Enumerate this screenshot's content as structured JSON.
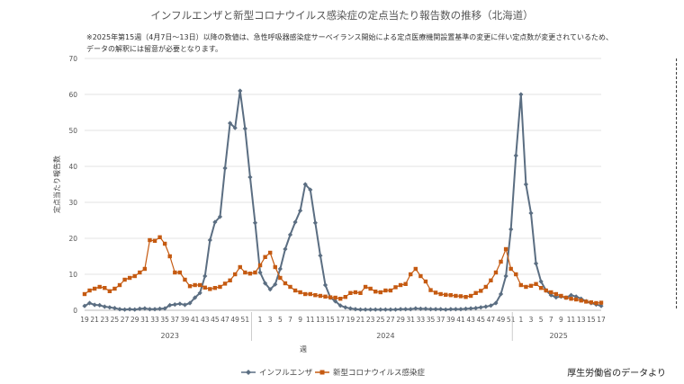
{
  "header": {
    "title": "インフルエンザと新型コロナウイルス感染症の定点当たり報告数の推移（北海道）",
    "note_line1": "※2025年第15週（4月7日〜13日）以降の数値は、急性呼吸器感染症サーベイランス開始による定点医療機関設置基準の変更に伴い定点数が変更されているため、",
    "note_line2": "データの解釈には留意が必要となります。"
  },
  "credit": "厚生労働省のデータより",
  "chart_data": {
    "type": "line",
    "ylabel": "定点当たり報告数",
    "xlabel": "週",
    "ylim": [
      0,
      70
    ],
    "yticks": [
      0,
      10,
      20,
      30,
      40,
      50,
      60,
      70
    ],
    "grid": true,
    "legend_position": "bottom",
    "reference_line": {
      "at_week_index": 118,
      "style": "dashed"
    },
    "x_tick_labels": [
      "19",
      "21",
      "23",
      "25",
      "27",
      "29",
      "31",
      "33",
      "35",
      "37",
      "39",
      "41",
      "43",
      "45",
      "47",
      "49",
      "51",
      "1",
      "3",
      "5",
      "7",
      "9",
      "11",
      "13",
      "15",
      "17",
      "19",
      "21",
      "23",
      "25",
      "27",
      "29",
      "31",
      "33",
      "35",
      "37",
      "39",
      "41",
      "43",
      "45",
      "47",
      "49",
      "51",
      "1",
      "3",
      "5",
      "7",
      "9",
      "11",
      "13",
      "15",
      "17"
    ],
    "x_tick_index": [
      0,
      2,
      4,
      6,
      8,
      10,
      12,
      14,
      16,
      18,
      20,
      22,
      24,
      26,
      28,
      30,
      32,
      35,
      37,
      39,
      41,
      43,
      45,
      47,
      49,
      51,
      53,
      55,
      57,
      59,
      61,
      63,
      65,
      67,
      69,
      71,
      73,
      75,
      77,
      79,
      81,
      83,
      85,
      87,
      89,
      91,
      93,
      95,
      97,
      99,
      101,
      103
    ],
    "year_labels": [
      {
        "label": "2023",
        "start_index": 0,
        "end_index": 34
      },
      {
        "label": "2024",
        "start_index": 34,
        "end_index": 86
      },
      {
        "label": "2025",
        "start_index": 86,
        "end_index": 103
      }
    ],
    "n_weeks": 104,
    "series": [
      {
        "name": "インフルエンザ",
        "color": "#5b6e82",
        "marker": "diamond",
        "values": [
          1.2,
          2,
          1.5,
          1.4,
          1,
          0.8,
          0.6,
          0.3,
          0.2,
          0.3,
          0.2,
          0.4,
          0.5,
          0.3,
          0.3,
          0.4,
          0.5,
          1.4,
          1.6,
          1.8,
          1.5,
          2,
          3.5,
          4.8,
          9.5,
          19.5,
          24.5,
          26,
          39.5,
          52,
          50.7,
          61,
          50.5,
          37,
          24.3,
          10.5,
          7.5,
          5.8,
          7.2,
          11.5,
          17,
          21,
          24.5,
          27.7,
          35,
          33.5,
          24.3,
          15.2,
          7,
          3.5,
          2.5,
          1.3,
          0.8,
          0.5,
          0.3,
          0.2,
          0.2,
          0.2,
          0.2,
          0.2,
          0.2,
          0.2,
          0.2,
          0.3,
          0.3,
          0.3,
          0.5,
          0.4,
          0.4,
          0.3,
          0.3,
          0.3,
          0.2,
          0.3,
          0.3,
          0.3,
          0.4,
          0.5,
          0.6,
          0.8,
          1,
          1.3,
          2,
          4.5,
          9.5,
          22.5,
          43,
          60,
          35,
          27,
          13,
          8,
          5.5,
          4.2,
          3.6,
          3.8,
          3.5,
          4.2,
          3.8,
          3.2,
          2.5,
          2,
          1.6,
          1.2
        ]
      },
      {
        "name": "新型コロナウイルス感染症",
        "color": "#c55a11",
        "marker": "square",
        "values": [
          4.5,
          5.5,
          6,
          6.5,
          6.2,
          5.3,
          6,
          7,
          8.5,
          9,
          9.5,
          10.5,
          11.5,
          19.5,
          19.3,
          20.3,
          18.5,
          15,
          10.5,
          10.5,
          8.5,
          6.7,
          7,
          7,
          6.3,
          5.9,
          6.2,
          6.5,
          7.4,
          8.3,
          10,
          12,
          10.5,
          10.2,
          10.5,
          12.5,
          14.8,
          16,
          12,
          9,
          7.5,
          6.5,
          5.5,
          5,
          4.5,
          4.5,
          4.2,
          4,
          3.8,
          3.6,
          3.5,
          3.2,
          3.7,
          4.8,
          5,
          4.8,
          6.5,
          6,
          5.2,
          5,
          5.5,
          5.5,
          6.4,
          7,
          7.3,
          10,
          11.5,
          9.5,
          8,
          5.6,
          4.9,
          4.5,
          4.3,
          4.2,
          4,
          3.9,
          3.7,
          4,
          4.8,
          5.4,
          6.5,
          8.3,
          10.5,
          13.5,
          17,
          11.5,
          10,
          7,
          6.5,
          6.8,
          7.3,
          6.2,
          5.5,
          5,
          4.5,
          4,
          3.5,
          3.2,
          3,
          2.7,
          2.4,
          2.2,
          2,
          2.1
        ]
      }
    ]
  }
}
